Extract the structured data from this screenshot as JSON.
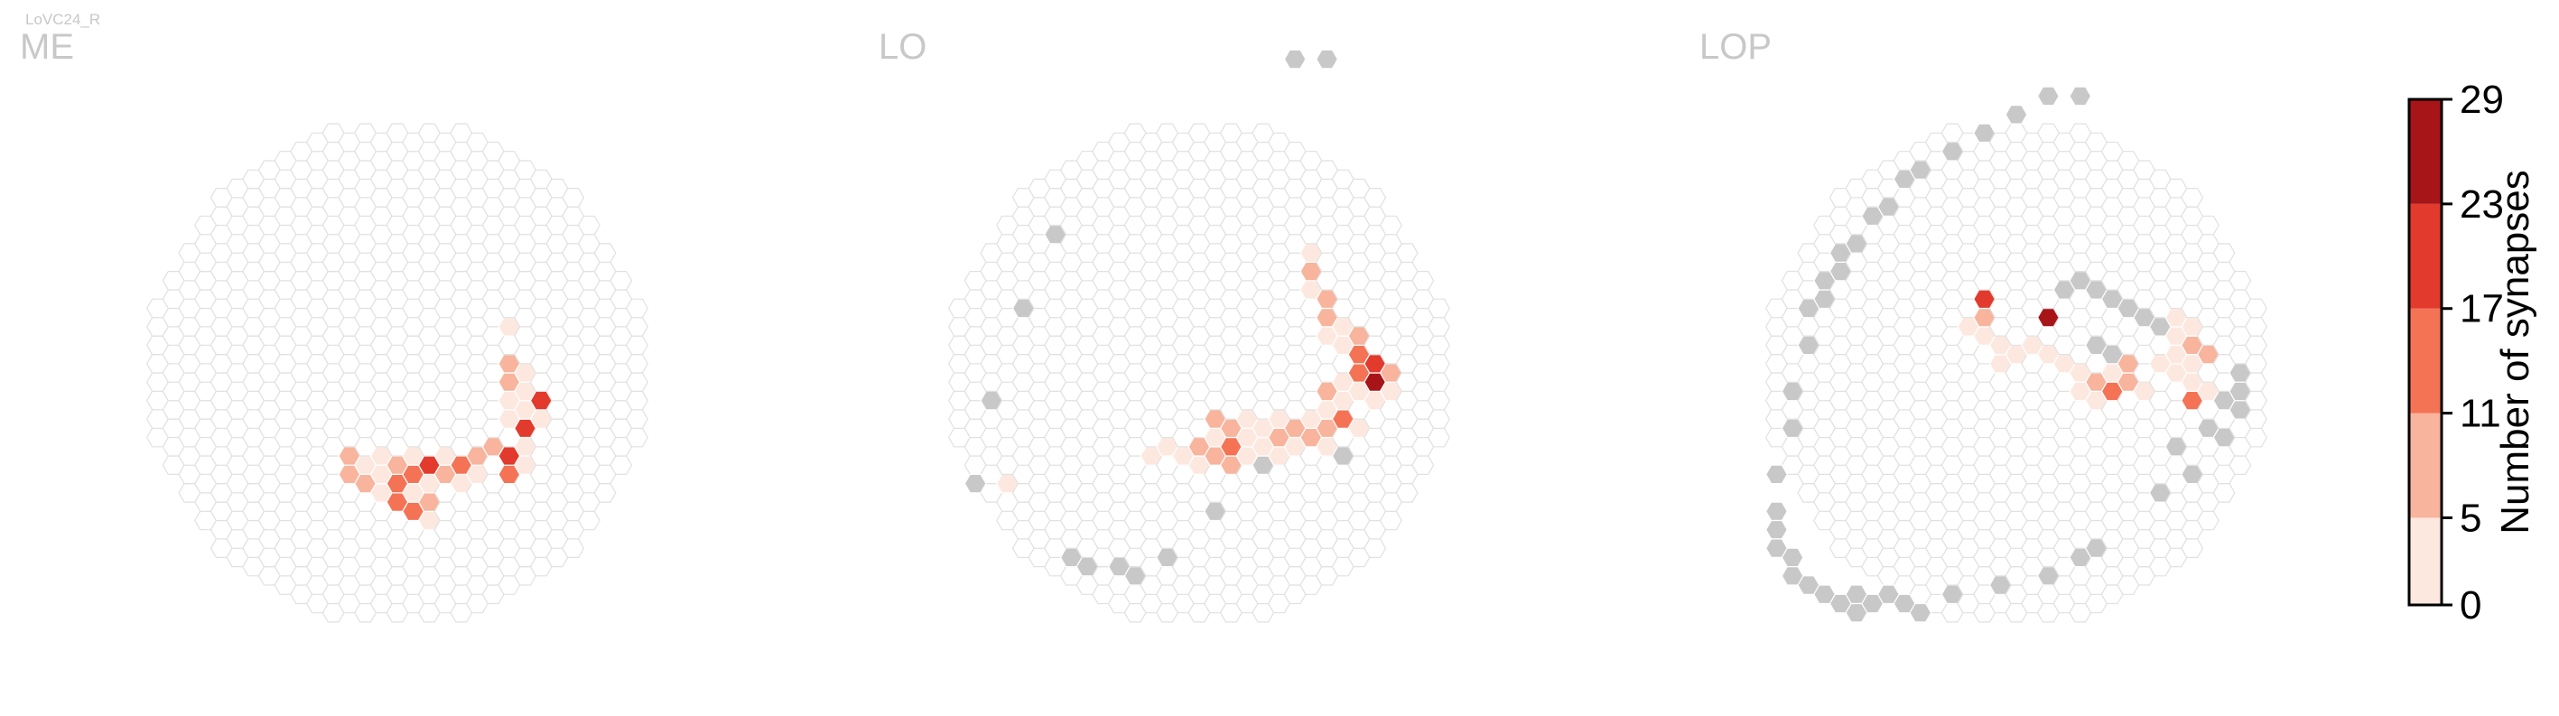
{
  "figure_label": "LoVC24_R",
  "chart_data": {
    "type": "heatmap",
    "layout": "hexagonal-column-map",
    "colorbar": {
      "label": "Number of synapses",
      "ticks": [
        0,
        5,
        11,
        17,
        23,
        29
      ],
      "bin_colors": [
        "#fde8df",
        "#f8b49c",
        "#f57355",
        "#e23a2c",
        "#a81518"
      ],
      "empty_color": "#ffffff",
      "zero_color": "#c8c8c8"
    },
    "panels": [
      {
        "title": "ME",
        "cells": [
          {
            "q": 7,
            "r": -1,
            "v": 2
          },
          {
            "q": 7,
            "r": -3,
            "v": 8
          },
          {
            "q": 7,
            "r": -4,
            "v": 10
          },
          {
            "q": 7,
            "r": -5,
            "v": 2
          },
          {
            "q": 7,
            "r": -6,
            "v": 4
          },
          {
            "q": 8,
            "r": -4,
            "v": 3
          },
          {
            "q": 8,
            "r": -5,
            "v": 4
          },
          {
            "q": 8,
            "r": -7,
            "v": 22
          },
          {
            "q": 8,
            "r": -6,
            "v": 3
          },
          {
            "q": 9,
            "r": -6,
            "v": 20
          },
          {
            "q": 9,
            "r": -7,
            "v": 4
          },
          {
            "q": 8,
            "r": -8,
            "v": 3
          },
          {
            "q": 8,
            "r": -9,
            "v": 1
          },
          {
            "q": 7,
            "r": -9,
            "v": 12
          },
          {
            "q": 7,
            "r": -8,
            "v": 20
          },
          {
            "q": 6,
            "r": -7,
            "v": 8
          },
          {
            "q": 5,
            "r": -7,
            "v": 11
          },
          {
            "q": 5,
            "r": -8,
            "v": 3
          },
          {
            "q": 4,
            "r": -7,
            "v": 17
          },
          {
            "q": 3,
            "r": -6,
            "v": 2
          },
          {
            "q": 4,
            "r": -8,
            "v": 5
          },
          {
            "q": 3,
            "r": -7,
            "v": 8
          },
          {
            "q": 2,
            "r": -6,
            "v": 20
          },
          {
            "q": 2,
            "r": -7,
            "v": 3
          },
          {
            "q": 2,
            "r": -8,
            "v": 9
          },
          {
            "q": 1,
            "r": -6,
            "v": 14
          },
          {
            "q": 1,
            "r": -7,
            "v": 4
          },
          {
            "q": 1,
            "r": -5,
            "v": 3
          },
          {
            "q": 0,
            "r": -5,
            "v": 6
          },
          {
            "q": 0,
            "r": -6,
            "v": 16
          },
          {
            "q": -1,
            "r": -5,
            "v": 3
          },
          {
            "q": 0,
            "r": -7,
            "v": 12
          },
          {
            "q": 1,
            "r": -8,
            "v": 15
          },
          {
            "q": 2,
            "r": -9,
            "v": 2
          },
          {
            "q": -1,
            "r": -4,
            "v": 4
          },
          {
            "q": -2,
            "r": -4,
            "v": 5
          },
          {
            "q": -2,
            "r": -5,
            "v": 10
          },
          {
            "q": -3,
            "r": -4,
            "v": 8
          },
          {
            "q": -3,
            "r": -3,
            "v": 10
          },
          {
            "q": -1,
            "r": -6,
            "v": 3
          }
        ]
      },
      {
        "title": "LO",
        "cells": [
          {
            "q": 7,
            "r": 3,
            "v": 3
          },
          {
            "q": 7,
            "r": 2,
            "v": 9
          },
          {
            "q": 7,
            "r": 1,
            "v": 2
          },
          {
            "q": 8,
            "r": 0,
            "v": 8
          },
          {
            "q": 8,
            "r": -1,
            "v": 10
          },
          {
            "q": 8,
            "r": -2,
            "v": 3
          },
          {
            "q": 9,
            "r": -2,
            "v": 2
          },
          {
            "q": 9,
            "r": -3,
            "v": 4
          },
          {
            "q": 10,
            "r": -3,
            "v": 10
          },
          {
            "q": 10,
            "r": -4,
            "v": 16
          },
          {
            "q": 10,
            "r": -5,
            "v": 12
          },
          {
            "q": 11,
            "r": -5,
            "v": 18
          },
          {
            "q": 11,
            "r": -6,
            "v": 26
          },
          {
            "q": 11,
            "r": -7,
            "v": 3
          },
          {
            "q": 12,
            "r": -6,
            "v": 9
          },
          {
            "q": 12,
            "r": -7,
            "v": 3
          },
          {
            "q": 10,
            "r": -6,
            "v": 3
          },
          {
            "q": 9,
            "r": -5,
            "v": 2
          },
          {
            "q": 9,
            "r": -6,
            "v": 3
          },
          {
            "q": 8,
            "r": -5,
            "v": 8
          },
          {
            "q": 9,
            "r": -7,
            "v": 14
          },
          {
            "q": 10,
            "r": -8,
            "v": 2
          },
          {
            "q": 8,
            "r": -6,
            "v": 5
          },
          {
            "q": 8,
            "r": -7,
            "v": 9
          },
          {
            "q": 8,
            "r": -8,
            "v": 3
          },
          {
            "q": 7,
            "r": -6,
            "v": 2
          },
          {
            "q": 7,
            "r": -7,
            "v": 6
          },
          {
            "q": 6,
            "r": -6,
            "v": 9
          },
          {
            "q": 6,
            "r": -7,
            "v": 5
          },
          {
            "q": 5,
            "r": -5,
            "v": 3
          },
          {
            "q": 5,
            "r": -6,
            "v": 8
          },
          {
            "q": 5,
            "r": -7,
            "v": 3
          },
          {
            "q": 4,
            "r": -5,
            "v": 4
          },
          {
            "q": 4,
            "r": -6,
            "v": 2
          },
          {
            "q": 3,
            "r": -4,
            "v": 3
          },
          {
            "q": 3,
            "r": -5,
            "v": 5
          },
          {
            "q": 3,
            "r": -6,
            "v": 2
          },
          {
            "q": 2,
            "r": -4,
            "v": 10
          },
          {
            "q": 2,
            "r": -5,
            "v": 12
          },
          {
            "q": 2,
            "r": -6,
            "v": 8
          },
          {
            "q": 1,
            "r": -3,
            "v": 9
          },
          {
            "q": 1,
            "r": -4,
            "v": 4
          },
          {
            "q": 1,
            "r": -5,
            "v": 11
          },
          {
            "q": 0,
            "r": -4,
            "v": 6
          },
          {
            "q": 0,
            "r": -5,
            "v": 3
          },
          {
            "q": -1,
            "r": -4,
            "v": 2
          },
          {
            "q": -2,
            "r": -3,
            "v": 1
          },
          {
            "q": -3,
            "r": -3,
            "v": 3
          },
          {
            "q": -12,
            "r": 0,
            "v": 2
          },
          {
            "q": 6,
            "r": 14,
            "v": 0
          },
          {
            "q": 8,
            "r": 13,
            "v": 0
          },
          {
            "q": -9,
            "r": 12,
            "v": 0
          },
          {
            "q": -11,
            "r": 9,
            "v": 0
          },
          {
            "q": -13,
            "r": 5,
            "v": 0
          },
          {
            "q": -14,
            "r": 1,
            "v": 0
          },
          {
            "q": -2,
            "r": -9,
            "v": 0
          },
          {
            "q": -4,
            "r": -9,
            "v": 0
          },
          {
            "q": -5,
            "r": -8,
            "v": 0
          },
          {
            "q": -7,
            "r": -7,
            "v": 0
          },
          {
            "q": -8,
            "r": -6,
            "v": 0
          },
          {
            "q": 1,
            "r": -8,
            "v": 0
          },
          {
            "q": 9,
            "r": -9,
            "v": 0
          },
          {
            "q": 4,
            "r": -7,
            "v": 0
          }
        ]
      },
      {
        "title": "LOP",
        "cells": [
          {
            "q": 11,
            "r": -3,
            "v": 2
          },
          {
            "q": 10,
            "r": -2,
            "v": 2
          },
          {
            "q": 10,
            "r": -3,
            "v": 3
          },
          {
            "q": 11,
            "r": -4,
            "v": 10
          },
          {
            "q": 11,
            "r": -5,
            "v": 2
          },
          {
            "q": 12,
            "r": -5,
            "v": 9
          },
          {
            "q": 10,
            "r": -4,
            "v": 3
          },
          {
            "q": 10,
            "r": -5,
            "v": 2
          },
          {
            "q": 11,
            "r": -6,
            "v": 4
          },
          {
            "q": 12,
            "r": -7,
            "v": 3
          },
          {
            "q": 9,
            "r": -4,
            "v": 3
          },
          {
            "q": 11,
            "r": -7,
            "v": 14
          },
          {
            "q": 7,
            "r": -3,
            "v": 11
          },
          {
            "q": 7,
            "r": -4,
            "v": 9
          },
          {
            "q": 6,
            "r": -3,
            "v": 3
          },
          {
            "q": 6,
            "r": -4,
            "v": 14
          },
          {
            "q": 5,
            "r": -3,
            "v": 8
          },
          {
            "q": 5,
            "r": -4,
            "v": 2
          },
          {
            "q": 8,
            "r": -5,
            "v": 4
          },
          {
            "q": 4,
            "r": -2,
            "v": 3
          },
          {
            "q": 4,
            "r": -3,
            "v": 2
          },
          {
            "q": 3,
            "r": -1,
            "v": 2
          },
          {
            "q": 2,
            "r": 0,
            "v": 3
          },
          {
            "q": 1,
            "r": 1,
            "v": 2
          },
          {
            "q": 0,
            "r": 1,
            "v": 4
          },
          {
            "q": -1,
            "r": 2,
            "v": 5
          },
          {
            "q": -1,
            "r": 1,
            "v": 2
          },
          {
            "q": -2,
            "r": 3,
            "v": 3
          },
          {
            "q": -2,
            "r": 4,
            "v": 8
          },
          {
            "q": -3,
            "r": 4,
            "v": 3
          },
          {
            "q": -2,
            "r": 5,
            "v": 22
          },
          {
            "q": 2,
            "r": 2,
            "v": 27
          },
          {
            "q": 12,
            "r": -9,
            "v": 0
          },
          {
            "q": 13,
            "r": -10,
            "v": 0
          },
          {
            "q": 13,
            "r": -8,
            "v": 0
          },
          {
            "q": 14,
            "r": -9,
            "v": 0
          },
          {
            "q": 14,
            "r": -8,
            "v": 0
          },
          {
            "q": 14,
            "r": -7,
            "v": 0
          },
          {
            "q": 9,
            "r": -11,
            "v": 0
          },
          {
            "q": 11,
            "r": -11,
            "v": 0
          },
          {
            "q": 10,
            "r": -9,
            "v": 0
          },
          {
            "q": 9,
            "r": -2,
            "v": 0
          },
          {
            "q": 8,
            "r": -1,
            "v": 0
          },
          {
            "q": 7,
            "r": 0,
            "v": 0
          },
          {
            "q": 6,
            "r": 1,
            "v": 0
          },
          {
            "q": 5,
            "r": 2,
            "v": 0
          },
          {
            "q": 4,
            "r": 3,
            "v": 0
          },
          {
            "q": 3,
            "r": 3,
            "v": 0
          },
          {
            "q": 6,
            "r": -2,
            "v": 0
          },
          {
            "q": 5,
            "r": -1,
            "v": 0
          },
          {
            "q": 2,
            "r": 14,
            "v": 0
          },
          {
            "q": 4,
            "r": 13,
            "v": 0
          },
          {
            "q": 0,
            "r": 14,
            "v": 0
          },
          {
            "q": -2,
            "r": 14,
            "v": 0
          },
          {
            "q": -4,
            "r": 14,
            "v": 0
          },
          {
            "q": -6,
            "r": 14,
            "v": 0
          },
          {
            "q": -7,
            "r": 14,
            "v": 0
          },
          {
            "q": -8,
            "r": 13,
            "v": 0
          },
          {
            "q": -9,
            "r": 13,
            "v": 0
          },
          {
            "q": -10,
            "r": 12,
            "v": 0
          },
          {
            "q": -11,
            "r": 12,
            "v": 0
          },
          {
            "q": -11,
            "r": 11,
            "v": 0
          },
          {
            "q": -12,
            "r": 11,
            "v": 0
          },
          {
            "q": -12,
            "r": 10,
            "v": 0
          },
          {
            "q": -13,
            "r": 10,
            "v": 0
          },
          {
            "q": -13,
            "r": 8,
            "v": 0
          },
          {
            "q": -14,
            "r": 6,
            "v": 0
          },
          {
            "q": -14,
            "r": 4,
            "v": 0
          },
          {
            "q": -15,
            "r": 2,
            "v": 0
          },
          {
            "q": -15,
            "r": 0,
            "v": 0
          },
          {
            "q": -15,
            "r": -1,
            "v": 0
          },
          {
            "q": -15,
            "r": -2,
            "v": 0
          },
          {
            "q": -14,
            "r": -3,
            "v": 0
          },
          {
            "q": -14,
            "r": -4,
            "v": 0
          },
          {
            "q": -13,
            "r": -5,
            "v": 0
          },
          {
            "q": -12,
            "r": -6,
            "v": 0
          },
          {
            "q": -11,
            "r": -7,
            "v": 0
          },
          {
            "q": -10,
            "r": -7,
            "v": 0
          },
          {
            "q": -10,
            "r": -8,
            "v": 0
          },
          {
            "q": -9,
            "r": -8,
            "v": 0
          },
          {
            "q": -8,
            "r": -8,
            "v": 0
          },
          {
            "q": -7,
            "r": -9,
            "v": 0
          },
          {
            "q": -6,
            "r": -10,
            "v": 0
          },
          {
            "q": -4,
            "r": -10,
            "v": 0
          },
          {
            "q": -1,
            "r": -11,
            "v": 0
          },
          {
            "q": 2,
            "r": -12,
            "v": 0
          },
          {
            "q": 4,
            "r": -12,
            "v": 0
          },
          {
            "q": 5,
            "r": -12,
            "v": 0
          }
        ]
      }
    ]
  }
}
